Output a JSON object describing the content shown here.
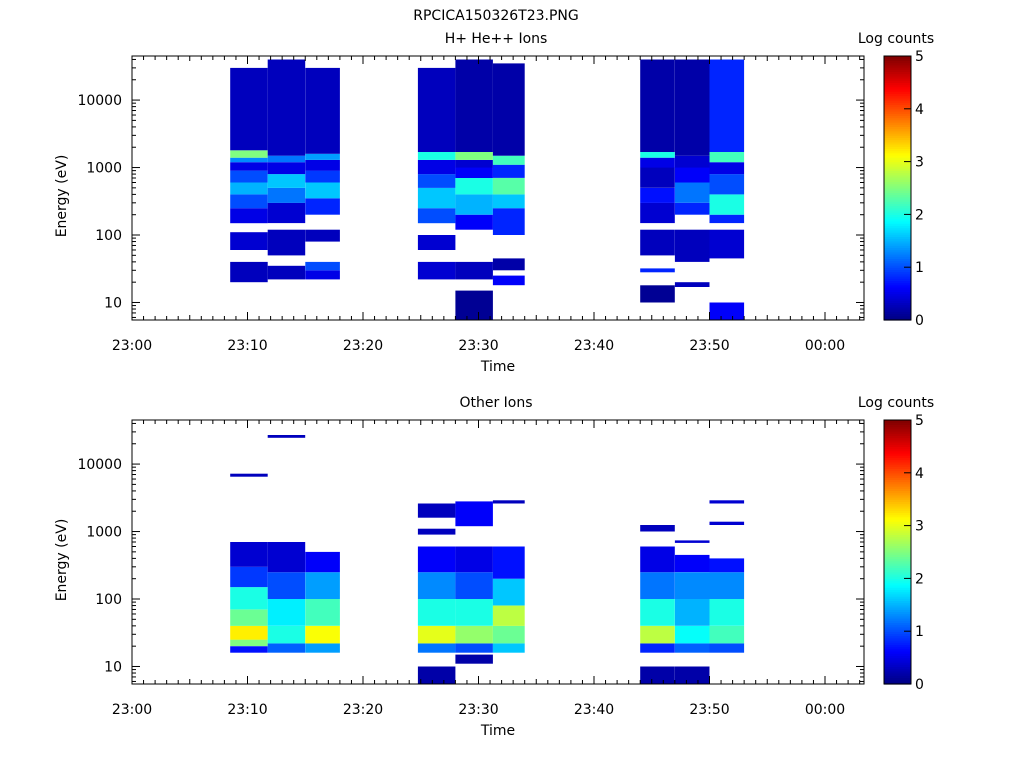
{
  "figure_title": "RPCICA150326T23.PNG",
  "colorbar": {
    "label": "Log counts",
    "ticks": [
      "0",
      "1",
      "2",
      "3",
      "4",
      "5"
    ]
  },
  "chart_data": [
    {
      "type": "heatmap",
      "title": "H+ He++ Ions",
      "xlabel": "Time",
      "ylabel": "Energy (eV)",
      "x_tick_labels": [
        "23:00",
        "23:10",
        "23:20",
        "23:30",
        "23:40",
        "23:50",
        "00:00"
      ],
      "y_tick_labels": [
        "10",
        "100",
        "1000",
        "10000"
      ],
      "y_scale": "log",
      "ylim": [
        5.5,
        45000
      ],
      "colorbar_range": [
        0,
        5
      ],
      "columns": [
        {
          "t0": "23:08:30",
          "t1": "23:11:45",
          "bands": [
            {
              "e0": 20,
              "e1": 40,
              "v": 0.3
            },
            {
              "e0": 60,
              "e1": 110,
              "v": 0.4
            },
            {
              "e0": 150,
              "e1": 250,
              "v": 0.5
            },
            {
              "e0": 250,
              "e1": 400,
              "v": 1.0
            },
            {
              "e0": 400,
              "e1": 600,
              "v": 1.5
            },
            {
              "e0": 600,
              "e1": 900,
              "v": 1.0
            },
            {
              "e0": 900,
              "e1": 1200,
              "v": 0.5
            },
            {
              "e0": 1200,
              "e1": 1400,
              "v": 1.3
            },
            {
              "e0": 1400,
              "e1": 1800,
              "v": 2.5
            },
            {
              "e0": 1800,
              "e1": 30000,
              "v": 0.3
            }
          ]
        },
        {
          "t0": "23:11:45",
          "t1": "23:15:00",
          "bands": [
            {
              "e0": 22,
              "e1": 35,
              "v": 0.3
            },
            {
              "e0": 50,
              "e1": 120,
              "v": 0.3
            },
            {
              "e0": 150,
              "e1": 300,
              "v": 0.4
            },
            {
              "e0": 300,
              "e1": 500,
              "v": 1.2
            },
            {
              "e0": 500,
              "e1": 800,
              "v": 1.6
            },
            {
              "e0": 800,
              "e1": 1200,
              "v": 0.5
            },
            {
              "e0": 1200,
              "e1": 1500,
              "v": 1.2
            },
            {
              "e0": 1500,
              "e1": 40000,
              "v": 0.3
            }
          ]
        },
        {
          "t0": "23:15:00",
          "t1": "23:18:00",
          "bands": [
            {
              "e0": 22,
              "e1": 30,
              "v": 0.5
            },
            {
              "e0": 30,
              "e1": 40,
              "v": 1.0
            },
            {
              "e0": 80,
              "e1": 120,
              "v": 0.3
            },
            {
              "e0": 200,
              "e1": 350,
              "v": 0.8
            },
            {
              "e0": 350,
              "e1": 600,
              "v": 1.6
            },
            {
              "e0": 600,
              "e1": 900,
              "v": 0.9
            },
            {
              "e0": 900,
              "e1": 1300,
              "v": 0.5
            },
            {
              "e0": 1300,
              "e1": 1600,
              "v": 1.4
            },
            {
              "e0": 1600,
              "e1": 30000,
              "v": 0.3
            }
          ]
        },
        {
          "t0": "23:24:45",
          "t1": "23:28:00",
          "bands": [
            {
              "e0": 22,
              "e1": 40,
              "v": 0.4
            },
            {
              "e0": 60,
              "e1": 100,
              "v": 0.4
            },
            {
              "e0": 150,
              "e1": 250,
              "v": 1.0
            },
            {
              "e0": 250,
              "e1": 500,
              "v": 1.6
            },
            {
              "e0": 500,
              "e1": 800,
              "v": 1.0
            },
            {
              "e0": 800,
              "e1": 1300,
              "v": 0.5
            },
            {
              "e0": 1300,
              "e1": 1700,
              "v": 2.0
            },
            {
              "e0": 1700,
              "e1": 30000,
              "v": 0.3
            }
          ]
        },
        {
          "t0": "23:28:00",
          "t1": "23:31:15",
          "bands": [
            {
              "e0": 5.5,
              "e1": 15,
              "v": 0.1
            },
            {
              "e0": 22,
              "e1": 40,
              "v": 0.3
            },
            {
              "e0": 120,
              "e1": 200,
              "v": 0.6
            },
            {
              "e0": 200,
              "e1": 400,
              "v": 1.5
            },
            {
              "e0": 400,
              "e1": 700,
              "v": 2.0
            },
            {
              "e0": 700,
              "e1": 1000,
              "v": 0.6
            },
            {
              "e0": 1000,
              "e1": 1300,
              "v": 0.4
            },
            {
              "e0": 1300,
              "e1": 1700,
              "v": 2.5
            },
            {
              "e0": 1700,
              "e1": 40000,
              "v": 0.2
            }
          ]
        },
        {
          "t0": "23:31:15",
          "t1": "23:34:00",
          "bands": [
            {
              "e0": 18,
              "e1": 25,
              "v": 0.6
            },
            {
              "e0": 30,
              "e1": 45,
              "v": 0.2
            },
            {
              "e0": 100,
              "e1": 250,
              "v": 0.8
            },
            {
              "e0": 250,
              "e1": 400,
              "v": 1.6
            },
            {
              "e0": 400,
              "e1": 700,
              "v": 2.3
            },
            {
              "e0": 700,
              "e1": 1100,
              "v": 0.8
            },
            {
              "e0": 1100,
              "e1": 1500,
              "v": 2.2
            },
            {
              "e0": 1500,
              "e1": 35000,
              "v": 0.2
            }
          ]
        },
        {
          "t0": "23:44:00",
          "t1": "23:47:00",
          "bands": [
            {
              "e0": 10,
              "e1": 18,
              "v": 0.1
            },
            {
              "e0": 28,
              "e1": 32,
              "v": 0.8
            },
            {
              "e0": 50,
              "e1": 120,
              "v": 0.3
            },
            {
              "e0": 150,
              "e1": 300,
              "v": 0.4
            },
            {
              "e0": 300,
              "e1": 500,
              "v": 0.7
            },
            {
              "e0": 500,
              "e1": 1000,
              "v": 0.3
            },
            {
              "e0": 1000,
              "e1": 1400,
              "v": 0.5
            },
            {
              "e0": 1400,
              "e1": 1700,
              "v": 2.0
            },
            {
              "e0": 1700,
              "e1": 40000,
              "v": 0.2
            }
          ]
        },
        {
          "t0": "23:47:00",
          "t1": "23:50:00",
          "bands": [
            {
              "e0": 17,
              "e1": 20,
              "v": 0.3
            },
            {
              "e0": 40,
              "e1": 120,
              "v": 0.3
            },
            {
              "e0": 200,
              "e1": 300,
              "v": 0.8
            },
            {
              "e0": 300,
              "e1": 600,
              "v": 1.2
            },
            {
              "e0": 600,
              "e1": 1000,
              "v": 0.6
            },
            {
              "e0": 1000,
              "e1": 1500,
              "v": 0.4
            },
            {
              "e0": 1500,
              "e1": 40000,
              "v": 0.2
            }
          ]
        },
        {
          "t0": "23:50:00",
          "t1": "23:53:00",
          "bands": [
            {
              "e0": 5.5,
              "e1": 10,
              "v": 0.6
            },
            {
              "e0": 45,
              "e1": 120,
              "v": 0.4
            },
            {
              "e0": 150,
              "e1": 200,
              "v": 0.8
            },
            {
              "e0": 200,
              "e1": 400,
              "v": 2.0
            },
            {
              "e0": 400,
              "e1": 800,
              "v": 1.0
            },
            {
              "e0": 800,
              "e1": 1200,
              "v": 0.5
            },
            {
              "e0": 1200,
              "e1": 1700,
              "v": 2.2
            },
            {
              "e0": 1700,
              "e1": 40000,
              "v": 0.8
            }
          ]
        }
      ]
    },
    {
      "type": "heatmap",
      "title": "Other Ions",
      "xlabel": "Time",
      "ylabel": "Energy (eV)",
      "x_tick_labels": [
        "23:00",
        "23:10",
        "23:20",
        "23:30",
        "23:40",
        "23:50",
        "00:00"
      ],
      "y_tick_labels": [
        "10",
        "100",
        "1000",
        "10000"
      ],
      "y_scale": "log",
      "ylim": [
        5.5,
        45000
      ],
      "colorbar_range": [
        0,
        5
      ],
      "columns": [
        {
          "t0": "23:08:30",
          "t1": "23:11:45",
          "bands": [
            {
              "e0": 16,
              "e1": 20,
              "v": 0.7
            },
            {
              "e0": 20,
              "e1": 25,
              "v": 2.5
            },
            {
              "e0": 25,
              "e1": 40,
              "v": 3.2
            },
            {
              "e0": 40,
              "e1": 70,
              "v": 2.4
            },
            {
              "e0": 70,
              "e1": 150,
              "v": 2.0
            },
            {
              "e0": 150,
              "e1": 300,
              "v": 0.9
            },
            {
              "e0": 300,
              "e1": 700,
              "v": 0.4
            },
            {
              "e0": 6500,
              "e1": 7200,
              "v": 0.3
            }
          ]
        },
        {
          "t0": "23:11:45",
          "t1": "23:15:00",
          "bands": [
            {
              "e0": 16,
              "e1": 22,
              "v": 1.1
            },
            {
              "e0": 22,
              "e1": 40,
              "v": 2.0
            },
            {
              "e0": 40,
              "e1": 100,
              "v": 1.8
            },
            {
              "e0": 100,
              "e1": 250,
              "v": 1.0
            },
            {
              "e0": 250,
              "e1": 700,
              "v": 0.4
            },
            {
              "e0": 24500,
              "e1": 27000,
              "v": 0.3
            }
          ]
        },
        {
          "t0": "23:15:00",
          "t1": "23:18:00",
          "bands": [
            {
              "e0": 16,
              "e1": 22,
              "v": 1.4
            },
            {
              "e0": 22,
              "e1": 40,
              "v": 3.1
            },
            {
              "e0": 40,
              "e1": 100,
              "v": 2.2
            },
            {
              "e0": 100,
              "e1": 250,
              "v": 1.4
            },
            {
              "e0": 250,
              "e1": 500,
              "v": 0.6
            }
          ]
        },
        {
          "t0": "23:24:45",
          "t1": "23:28:00",
          "bands": [
            {
              "e0": 5.5,
              "e1": 10,
              "v": 0.2
            },
            {
              "e0": 16,
              "e1": 22,
              "v": 1.2
            },
            {
              "e0": 22,
              "e1": 40,
              "v": 3.0
            },
            {
              "e0": 40,
              "e1": 100,
              "v": 2.0
            },
            {
              "e0": 100,
              "e1": 250,
              "v": 1.3
            },
            {
              "e0": 250,
              "e1": 600,
              "v": 0.6
            },
            {
              "e0": 900,
              "e1": 1100,
              "v": 0.3
            },
            {
              "e0": 1600,
              "e1": 2600,
              "v": 0.3
            }
          ]
        },
        {
          "t0": "23:28:00",
          "t1": "23:31:15",
          "bands": [
            {
              "e0": 11,
              "e1": 15,
              "v": 0.2
            },
            {
              "e0": 16,
              "e1": 22,
              "v": 1.0
            },
            {
              "e0": 22,
              "e1": 40,
              "v": 2.6
            },
            {
              "e0": 40,
              "e1": 100,
              "v": 2.0
            },
            {
              "e0": 100,
              "e1": 250,
              "v": 1.0
            },
            {
              "e0": 250,
              "e1": 600,
              "v": 0.5
            },
            {
              "e0": 1200,
              "e1": 2800,
              "v": 0.6
            }
          ]
        },
        {
          "t0": "23:31:15",
          "t1": "23:34:00",
          "bands": [
            {
              "e0": 16,
              "e1": 22,
              "v": 1.6
            },
            {
              "e0": 22,
              "e1": 40,
              "v": 2.4
            },
            {
              "e0": 40,
              "e1": 80,
              "v": 2.8
            },
            {
              "e0": 80,
              "e1": 200,
              "v": 1.6
            },
            {
              "e0": 200,
              "e1": 600,
              "v": 0.7
            },
            {
              "e0": 2600,
              "e1": 2900,
              "v": 0.3
            }
          ]
        },
        {
          "t0": "23:44:00",
          "t1": "23:47:00",
          "bands": [
            {
              "e0": 5.5,
              "e1": 10,
              "v": 0.2
            },
            {
              "e0": 16,
              "e1": 22,
              "v": 0.8
            },
            {
              "e0": 22,
              "e1": 40,
              "v": 2.8
            },
            {
              "e0": 40,
              "e1": 100,
              "v": 2.0
            },
            {
              "e0": 100,
              "e1": 250,
              "v": 1.2
            },
            {
              "e0": 250,
              "e1": 600,
              "v": 0.5
            },
            {
              "e0": 1000,
              "e1": 1250,
              "v": 0.3
            }
          ]
        },
        {
          "t0": "23:47:00",
          "t1": "23:50:00",
          "bands": [
            {
              "e0": 5.5,
              "e1": 10,
              "v": 0.2
            },
            {
              "e0": 16,
              "e1": 22,
              "v": 1.1
            },
            {
              "e0": 22,
              "e1": 40,
              "v": 1.9
            },
            {
              "e0": 40,
              "e1": 100,
              "v": 1.5
            },
            {
              "e0": 100,
              "e1": 250,
              "v": 1.3
            },
            {
              "e0": 250,
              "e1": 450,
              "v": 0.6
            },
            {
              "e0": 680,
              "e1": 740,
              "v": 0.4
            }
          ]
        },
        {
          "t0": "23:50:00",
          "t1": "23:53:00",
          "bands": [
            {
              "e0": 16,
              "e1": 22,
              "v": 1.0
            },
            {
              "e0": 22,
              "e1": 40,
              "v": 2.2
            },
            {
              "e0": 40,
              "e1": 100,
              "v": 2.0
            },
            {
              "e0": 100,
              "e1": 250,
              "v": 1.3
            },
            {
              "e0": 250,
              "e1": 400,
              "v": 0.7
            },
            {
              "e0": 1250,
              "e1": 1400,
              "v": 0.4
            },
            {
              "e0": 2600,
              "e1": 2900,
              "v": 0.4
            }
          ]
        }
      ]
    }
  ]
}
